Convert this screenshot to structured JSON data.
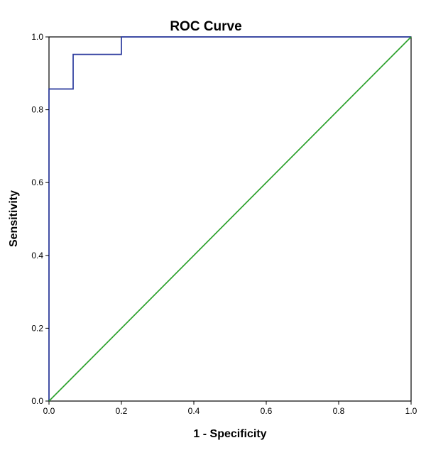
{
  "chart_data": {
    "type": "line",
    "title": "ROC Curve",
    "xlabel": "1 - Specificity",
    "ylabel": "Sensitivity",
    "xlim": [
      0,
      1
    ],
    "ylim": [
      0,
      1
    ],
    "x_ticks": [
      "0.0",
      "0.2",
      "0.4",
      "0.6",
      "0.8",
      "1.0"
    ],
    "y_ticks": [
      "0.0",
      "0.2",
      "0.4",
      "0.6",
      "0.8",
      "1.0"
    ],
    "grid": false,
    "series": [
      {
        "color": "#2b3a9e",
        "x": [
          0.0,
          0.0,
          0.0667,
          0.0667,
          0.2,
          0.2,
          1.0
        ],
        "y": [
          0.0,
          0.857,
          0.857,
          0.952,
          0.952,
          1.0,
          1.0
        ]
      },
      {
        "color": "#2aa02a",
        "x": [
          0.0,
          1.0
        ],
        "y": [
          0.0,
          1.0
        ]
      }
    ]
  }
}
